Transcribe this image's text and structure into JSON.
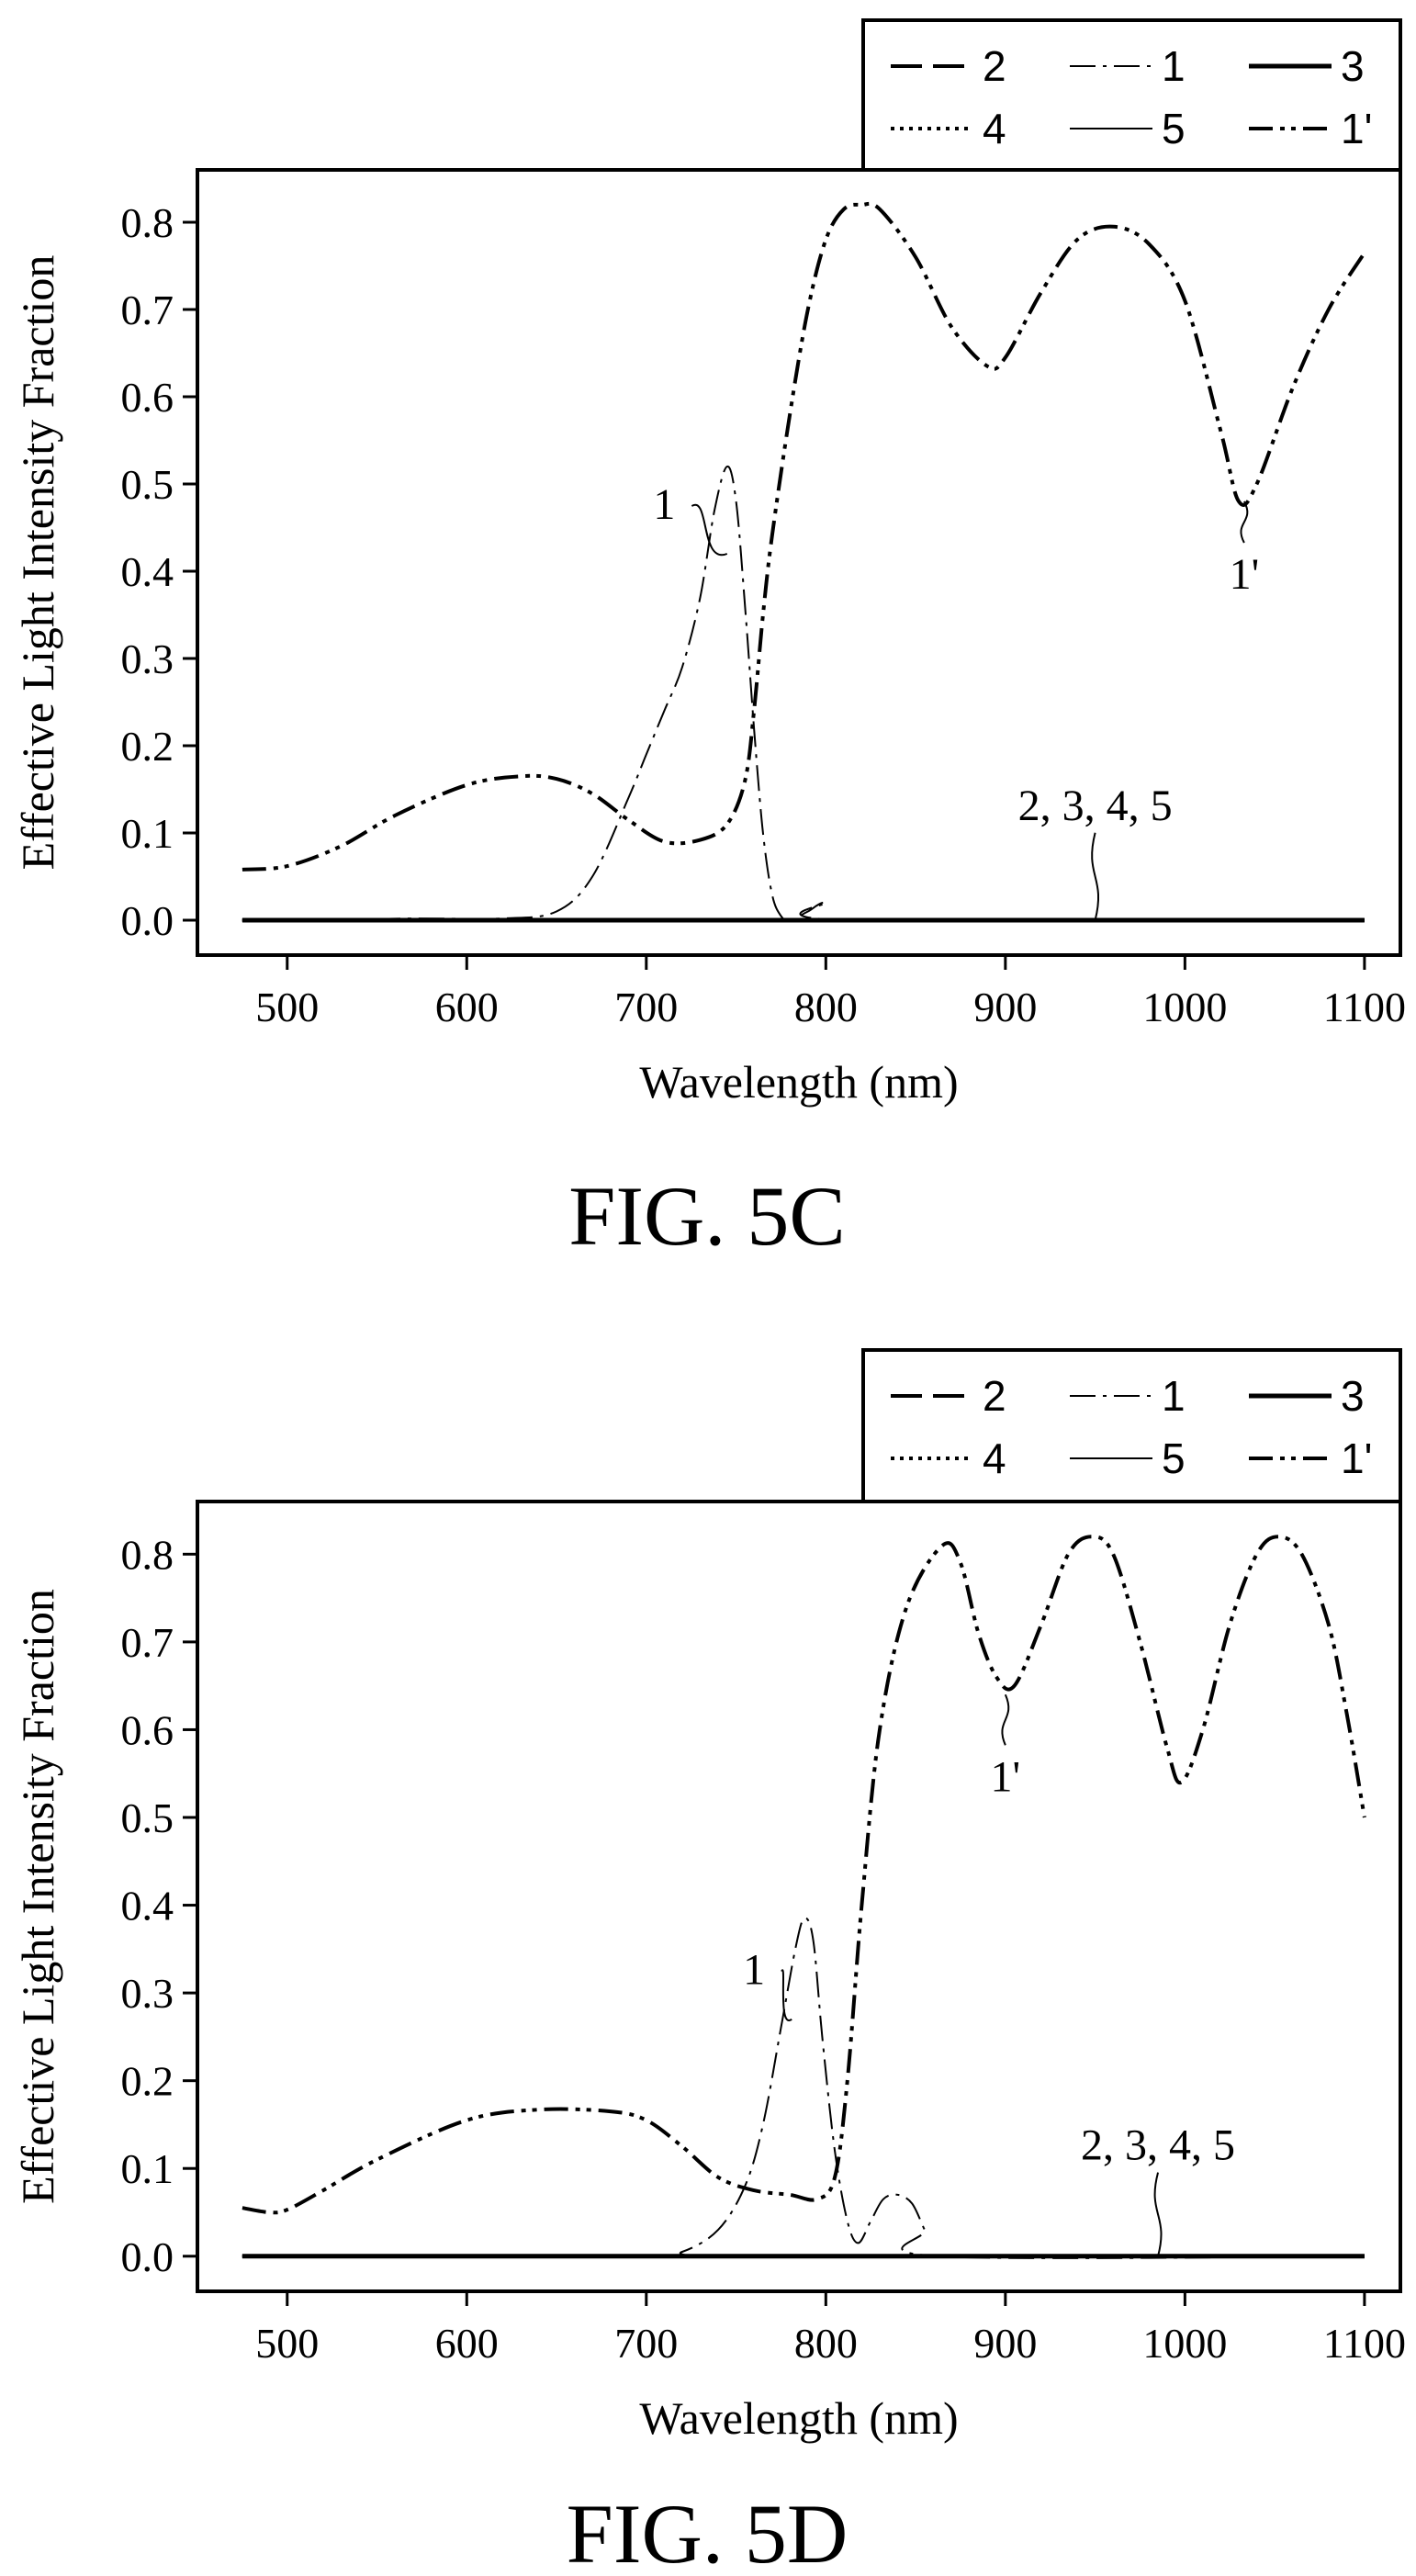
{
  "figures": [
    {
      "caption": "FIG. 5C"
    },
    {
      "caption": "FIG. 5D"
    }
  ],
  "chart_data": [
    {
      "type": "line",
      "xlabel": "Wavelength (nm)",
      "ylabel": "Effective Light Intensity Fraction",
      "xlim": [
        450,
        1120
      ],
      "ylim": [
        -0.04,
        0.86
      ],
      "xticks": [
        "500",
        "600",
        "700",
        "800",
        "900",
        "1000",
        "1100"
      ],
      "yticks": [
        "0.0",
        "0.1",
        "0.2",
        "0.3",
        "0.4",
        "0.5",
        "0.6",
        "0.7",
        "0.8"
      ],
      "grid": false,
      "legend": {
        "placement": "top-right, outside plot",
        "entries": [
          {
            "label": "2",
            "style": "long-dash"
          },
          {
            "label": "1",
            "style": "dash-dot"
          },
          {
            "label": "3",
            "style": "solid-thick"
          },
          {
            "label": "4",
            "style": "dotted"
          },
          {
            "label": "5",
            "style": "solid-thin"
          },
          {
            "label": "1'",
            "style": "dash-dot-dot"
          }
        ]
      },
      "series": [
        {
          "name": "1",
          "style": "dash-dot",
          "x": [
            475,
            520,
            570,
            620,
            650,
            670,
            690,
            700,
            710,
            720,
            730,
            738,
            745,
            750,
            755,
            760,
            765,
            770,
            775,
            780,
            790,
            800,
            810,
            1100
          ],
          "y": [
            0.0,
            0.0,
            0.002,
            0.002,
            0.01,
            0.05,
            0.14,
            0.19,
            0.24,
            0.29,
            0.37,
            0.47,
            0.52,
            0.48,
            0.36,
            0.22,
            0.1,
            0.03,
            0.005,
            0.0,
            0.01,
            0.02,
            0.0,
            0.0
          ]
        },
        {
          "name": "1'",
          "style": "dash-dot-dot",
          "x": [
            475,
            500,
            530,
            560,
            600,
            630,
            650,
            670,
            690,
            710,
            730,
            745,
            755,
            760,
            765,
            770,
            780,
            790,
            800,
            810,
            820,
            830,
            850,
            870,
            890,
            900,
            920,
            940,
            960,
            980,
            1000,
            1020,
            1030,
            1040,
            1060,
            1080,
            1100
          ],
          "y": [
            0.058,
            0.062,
            0.085,
            0.12,
            0.155,
            0.165,
            0.162,
            0.145,
            0.115,
            0.09,
            0.092,
            0.11,
            0.16,
            0.24,
            0.35,
            0.44,
            0.58,
            0.7,
            0.78,
            0.815,
            0.82,
            0.815,
            0.76,
            0.68,
            0.635,
            0.645,
            0.72,
            0.78,
            0.795,
            0.775,
            0.71,
            0.56,
            0.48,
            0.5,
            0.61,
            0.7,
            0.765
          ]
        },
        {
          "name": "2",
          "style": "long-dash",
          "x": [
            475,
            1100
          ],
          "y": [
            0.0,
            0.0
          ]
        },
        {
          "name": "3",
          "style": "solid-thick",
          "x": [
            475,
            1100
          ],
          "y": [
            0.0,
            0.0
          ]
        },
        {
          "name": "4",
          "style": "dotted",
          "x": [
            475,
            1100
          ],
          "y": [
            0.0,
            0.0
          ]
        },
        {
          "name": "5",
          "style": "solid-thin",
          "x": [
            475,
            1100
          ],
          "y": [
            0.0,
            0.0
          ]
        }
      ],
      "annotations": [
        {
          "text": "1",
          "x": 710,
          "y": 0.46,
          "target": [
            745,
            0.42
          ]
        },
        {
          "text": "1'",
          "x": 1033,
          "y": 0.38,
          "target": [
            1033,
            0.48
          ]
        },
        {
          "text": "2, 3, 4, 5",
          "x": 950,
          "y": 0.115,
          "target": [
            950,
            0.0
          ]
        }
      ]
    },
    {
      "type": "line",
      "xlabel": "Wavelength (nm)",
      "ylabel": "Effective Light Intensity Fraction",
      "xlim": [
        450,
        1120
      ],
      "ylim": [
        -0.04,
        0.86
      ],
      "xticks": [
        "500",
        "600",
        "700",
        "800",
        "900",
        "1000",
        "1100"
      ],
      "yticks": [
        "0.0",
        "0.1",
        "0.2",
        "0.3",
        "0.4",
        "0.5",
        "0.6",
        "0.7",
        "0.8"
      ],
      "grid": false,
      "legend": {
        "placement": "top-right, outside plot",
        "entries": [
          {
            "label": "2",
            "style": "long-dash"
          },
          {
            "label": "1",
            "style": "dash-dot"
          },
          {
            "label": "3",
            "style": "solid-thick"
          },
          {
            "label": "4",
            "style": "dotted"
          },
          {
            "label": "5",
            "style": "solid-thin"
          },
          {
            "label": "1'",
            "style": "dash-dot-dot"
          }
        ]
      },
      "series": [
        {
          "name": "1",
          "style": "dash-dot",
          "x": [
            475,
            700,
            720,
            740,
            755,
            765,
            775,
            783,
            788,
            793,
            798,
            805,
            812,
            818,
            825,
            832,
            840,
            848,
            855,
            862,
            1100
          ],
          "y": [
            0.0,
            0.0,
            0.005,
            0.03,
            0.08,
            0.15,
            0.26,
            0.35,
            0.385,
            0.36,
            0.25,
            0.12,
            0.04,
            0.015,
            0.04,
            0.065,
            0.07,
            0.06,
            0.03,
            0.0,
            0.0
          ]
        },
        {
          "name": "1'",
          "style": "dash-dot-dot",
          "x": [
            475,
            490,
            500,
            520,
            550,
            600,
            640,
            680,
            700,
            720,
            740,
            760,
            780,
            795,
            805,
            812,
            820,
            830,
            845,
            865,
            875,
            885,
            895,
            905,
            920,
            935,
            948,
            960,
            975,
            990,
            998,
            1010,
            1025,
            1040,
            1052,
            1065,
            1080,
            1090,
            1100
          ],
          "y": [
            0.055,
            0.05,
            0.053,
            0.075,
            0.11,
            0.155,
            0.167,
            0.165,
            0.155,
            0.125,
            0.09,
            0.075,
            0.07,
            0.065,
            0.09,
            0.2,
            0.4,
            0.6,
            0.74,
            0.81,
            0.79,
            0.71,
            0.66,
            0.65,
            0.72,
            0.8,
            0.82,
            0.8,
            0.7,
            0.58,
            0.54,
            0.6,
            0.72,
            0.8,
            0.82,
            0.8,
            0.72,
            0.62,
            0.5
          ]
        },
        {
          "name": "2",
          "style": "long-dash",
          "x": [
            475,
            1100
          ],
          "y": [
            0.0,
            0.0
          ]
        },
        {
          "name": "3",
          "style": "solid-thick",
          "x": [
            475,
            1100
          ],
          "y": [
            0.0,
            0.0
          ]
        },
        {
          "name": "4",
          "style": "dotted",
          "x": [
            475,
            1100
          ],
          "y": [
            0.0,
            0.0
          ]
        },
        {
          "name": "5",
          "style": "solid-thin",
          "x": [
            475,
            1100
          ],
          "y": [
            0.0,
            0.0
          ]
        }
      ],
      "annotations": [
        {
          "text": "1",
          "x": 760,
          "y": 0.31,
          "target": [
            781,
            0.27
          ]
        },
        {
          "text": "1'",
          "x": 900,
          "y": 0.53,
          "target": [
            900,
            0.64
          ]
        },
        {
          "text": "2, 3, 4, 5",
          "x": 985,
          "y": 0.11,
          "target": [
            985,
            0.0
          ]
        }
      ]
    }
  ]
}
